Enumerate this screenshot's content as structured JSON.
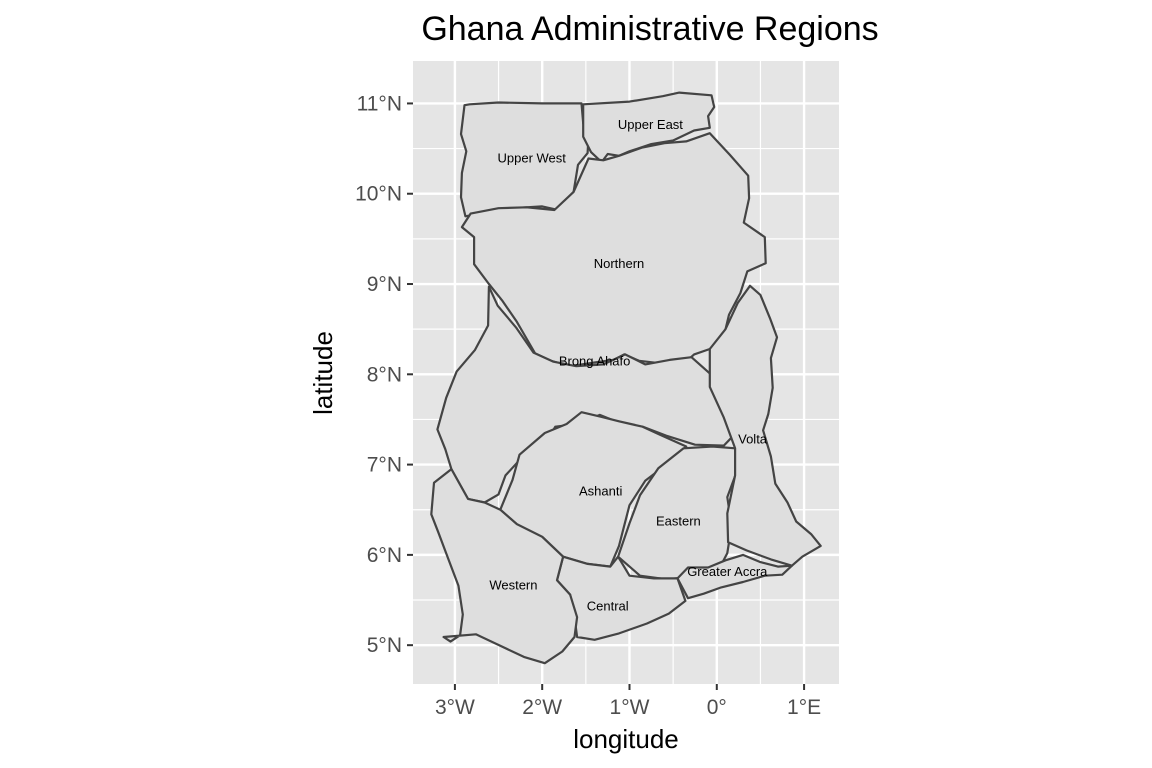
{
  "title": "Ghana Administrative Regions",
  "x_axis": {
    "label": "longitude",
    "ticks": [
      {
        "value": -3,
        "label": "3°W"
      },
      {
        "value": -2,
        "label": "2°W"
      },
      {
        "value": -1,
        "label": "1°W"
      },
      {
        "value": 0,
        "label": "0°"
      },
      {
        "value": 1,
        "label": "1°E"
      }
    ],
    "range": [
      -3.48,
      1.4
    ]
  },
  "y_axis": {
    "label": "latitude",
    "ticks": [
      {
        "value": 5,
        "label": "5°N"
      },
      {
        "value": 6,
        "label": "6°N"
      },
      {
        "value": 7,
        "label": "7°N"
      },
      {
        "value": 8,
        "label": "8°N"
      },
      {
        "value": 9,
        "label": "9°N"
      },
      {
        "value": 10,
        "label": "10°N"
      },
      {
        "value": 11,
        "label": "11°N"
      }
    ],
    "range": [
      4.57,
      11.47
    ]
  },
  "colors": {
    "panel_background": "#e5e5e5",
    "grid": "#ffffff",
    "region_fill": "#dedede",
    "region_border": "#444444"
  },
  "regions": [
    {
      "id": "upper-west",
      "label": "Upper West",
      "label_lon": -2.12,
      "label_lat": 10.39,
      "boundary": [
        [
          -2.83,
          10.99
        ],
        [
          -2.89,
          10.98
        ],
        [
          -2.93,
          10.66
        ],
        [
          -2.87,
          10.47
        ],
        [
          -2.92,
          10.23
        ],
        [
          -2.93,
          9.96
        ],
        [
          -2.88,
          9.75
        ],
        [
          -2.66,
          9.79
        ],
        [
          -2.48,
          9.83
        ],
        [
          -2.18,
          9.85
        ],
        [
          -2.0,
          9.86
        ],
        [
          -1.82,
          9.82
        ],
        [
          -1.64,
          10.02
        ],
        [
          -1.59,
          10.32
        ],
        [
          -1.48,
          10.45
        ],
        [
          -1.47,
          10.63
        ],
        [
          -1.53,
          10.78
        ],
        [
          -1.55,
          11.0
        ],
        [
          -2.0,
          11.0
        ],
        [
          -2.5,
          11.01
        ],
        [
          -2.83,
          10.99
        ]
      ]
    },
    {
      "id": "upper-east",
      "label": "Upper East",
      "label_lon": -0.76,
      "label_lat": 10.76,
      "boundary": [
        [
          -1.53,
          10.99
        ],
        [
          -1.0,
          11.02
        ],
        [
          -0.62,
          11.08
        ],
        [
          -0.43,
          11.12
        ],
        [
          -0.06,
          11.09
        ],
        [
          -0.03,
          10.96
        ],
        [
          -0.1,
          10.86
        ],
        [
          -0.08,
          10.73
        ],
        [
          -0.26,
          10.7
        ],
        [
          -0.5,
          10.59
        ],
        [
          -0.75,
          10.55
        ],
        [
          -1.0,
          10.47
        ],
        [
          -1.12,
          10.42
        ],
        [
          -1.25,
          10.44
        ],
        [
          -1.32,
          10.35
        ],
        [
          -1.44,
          10.46
        ],
        [
          -1.53,
          10.63
        ],
        [
          -1.53,
          10.99
        ]
      ]
    },
    {
      "id": "northern",
      "label": "Northern",
      "label_lon": -1.12,
      "label_lat": 9.22,
      "boundary": [
        [
          -1.64,
          10.02
        ],
        [
          -1.47,
          10.39
        ],
        [
          -1.3,
          10.37
        ],
        [
          -1.12,
          10.42
        ],
        [
          -0.86,
          10.51
        ],
        [
          -0.6,
          10.56
        ],
        [
          -0.35,
          10.58
        ],
        [
          -0.08,
          10.67
        ],
        [
          0.15,
          10.43
        ],
        [
          0.36,
          10.2
        ],
        [
          0.37,
          9.95
        ],
        [
          0.31,
          9.68
        ],
        [
          0.55,
          9.52
        ],
        [
          0.56,
          9.23
        ],
        [
          0.35,
          9.14
        ],
        [
          0.27,
          8.9
        ],
        [
          0.14,
          8.66
        ],
        [
          0.08,
          8.42
        ],
        [
          -0.08,
          8.28
        ],
        [
          -0.26,
          8.22
        ],
        [
          -0.42,
          8.08
        ],
        [
          -0.63,
          8.12
        ],
        [
          -0.89,
          8.15
        ],
        [
          -1.06,
          8.22
        ],
        [
          -1.18,
          8.16
        ],
        [
          -1.41,
          8.13
        ],
        [
          -1.68,
          8.09
        ],
        [
          -1.9,
          8.15
        ],
        [
          -2.08,
          8.23
        ],
        [
          -2.29,
          8.58
        ],
        [
          -2.46,
          8.82
        ],
        [
          -2.61,
          9.0
        ],
        [
          -2.78,
          9.22
        ],
        [
          -2.78,
          9.52
        ],
        [
          -2.92,
          9.63
        ],
        [
          -2.82,
          9.78
        ],
        [
          -2.5,
          9.84
        ],
        [
          -2.18,
          9.85
        ],
        [
          -1.86,
          9.82
        ],
        [
          -1.64,
          10.02
        ]
      ]
    },
    {
      "id": "brong-ahafo",
      "label": "Brong Ahafo",
      "label_lon": -1.4,
      "label_lat": 8.14,
      "boundary": [
        [
          -2.61,
          8.97
        ],
        [
          -2.51,
          8.76
        ],
        [
          -2.3,
          8.52
        ],
        [
          -2.1,
          8.24
        ],
        [
          -1.87,
          8.14
        ],
        [
          -1.61,
          8.09
        ],
        [
          -1.3,
          8.11
        ],
        [
          -1.05,
          8.22
        ],
        [
          -0.82,
          8.11
        ],
        [
          -0.54,
          8.16
        ],
        [
          -0.29,
          8.19
        ],
        [
          -0.08,
          8.01
        ],
        [
          0.05,
          7.66
        ],
        [
          0.2,
          7.33
        ],
        [
          0.08,
          7.21
        ],
        [
          -0.25,
          7.22
        ],
        [
          -0.58,
          7.32
        ],
        [
          -0.85,
          7.42
        ],
        [
          -1.03,
          7.43
        ],
        [
          -1.34,
          7.55
        ],
        [
          -1.59,
          7.45
        ],
        [
          -1.85,
          7.42
        ],
        [
          -1.93,
          7.29
        ],
        [
          -2.23,
          7.08
        ],
        [
          -2.42,
          6.88
        ],
        [
          -2.5,
          6.67
        ],
        [
          -2.66,
          6.58
        ],
        [
          -2.85,
          6.62
        ],
        [
          -3.04,
          6.95
        ],
        [
          -3.11,
          7.17
        ],
        [
          -3.2,
          7.39
        ],
        [
          -3.1,
          7.74
        ],
        [
          -2.98,
          8.03
        ],
        [
          -2.77,
          8.27
        ],
        [
          -2.62,
          8.54
        ],
        [
          -2.61,
          8.97
        ]
      ]
    },
    {
      "id": "ashanti",
      "label": "Ashanti",
      "label_lon": -1.33,
      "label_lat": 6.7,
      "boundary": [
        [
          -2.48,
          6.5
        ],
        [
          -2.34,
          6.83
        ],
        [
          -2.26,
          7.11
        ],
        [
          -1.97,
          7.35
        ],
        [
          -1.72,
          7.45
        ],
        [
          -1.55,
          7.58
        ],
        [
          -1.33,
          7.53
        ],
        [
          -1.12,
          7.48
        ],
        [
          -0.85,
          7.42
        ],
        [
          -0.65,
          7.33
        ],
        [
          -0.35,
          7.2
        ],
        [
          -0.55,
          7.02
        ],
        [
          -0.82,
          6.82
        ],
        [
          -1.0,
          6.55
        ],
        [
          -1.12,
          6.1
        ],
        [
          -1.22,
          5.87
        ],
        [
          -1.48,
          5.9
        ],
        [
          -1.76,
          5.98
        ],
        [
          -2.0,
          6.2
        ],
        [
          -2.29,
          6.34
        ],
        [
          -2.48,
          6.5
        ]
      ]
    },
    {
      "id": "eastern",
      "label": "Eastern",
      "label_lon": -0.44,
      "label_lat": 6.37,
      "boundary": [
        [
          -1.13,
          5.98
        ],
        [
          -1.0,
          6.35
        ],
        [
          -0.88,
          6.66
        ],
        [
          -0.67,
          6.96
        ],
        [
          -0.38,
          7.18
        ],
        [
          -0.05,
          7.2
        ],
        [
          0.21,
          7.18
        ],
        [
          0.22,
          6.9
        ],
        [
          0.12,
          6.64
        ],
        [
          0.17,
          6.32
        ],
        [
          0.12,
          6.02
        ],
        [
          0.03,
          5.85
        ],
        [
          -0.28,
          5.76
        ],
        [
          -0.57,
          5.73
        ],
        [
          -0.88,
          5.77
        ],
        [
          -1.13,
          5.98
        ]
      ]
    },
    {
      "id": "volta",
      "label": "Volta",
      "label_lon": 0.41,
      "label_lat": 7.28,
      "boundary": [
        [
          -0.08,
          8.28
        ],
        [
          0.1,
          8.5
        ],
        [
          0.24,
          8.79
        ],
        [
          0.38,
          8.98
        ],
        [
          0.5,
          8.88
        ],
        [
          0.61,
          8.62
        ],
        [
          0.69,
          8.41
        ],
        [
          0.62,
          8.18
        ],
        [
          0.64,
          7.85
        ],
        [
          0.59,
          7.56
        ],
        [
          0.53,
          7.38
        ],
        [
          0.62,
          7.09
        ],
        [
          0.67,
          6.79
        ],
        [
          0.81,
          6.58
        ],
        [
          0.91,
          6.37
        ],
        [
          1.08,
          6.23
        ],
        [
          1.19,
          6.1
        ],
        [
          0.98,
          5.98
        ],
        [
          0.86,
          5.88
        ],
        [
          0.62,
          5.95
        ],
        [
          0.34,
          6.05
        ],
        [
          0.13,
          6.14
        ],
        [
          0.12,
          6.46
        ],
        [
          0.21,
          6.88
        ],
        [
          0.21,
          7.18
        ],
        [
          0.08,
          7.52
        ],
        [
          -0.08,
          7.86
        ],
        [
          -0.08,
          8.28
        ]
      ]
    },
    {
      "id": "greater-accra",
      "label": "Greater Accra",
      "label_lon": 0.12,
      "label_lat": 5.81,
      "boundary": [
        [
          -0.45,
          5.74
        ],
        [
          -0.33,
          5.86
        ],
        [
          -0.1,
          5.86
        ],
        [
          0.1,
          5.94
        ],
        [
          0.3,
          6.0
        ],
        [
          0.5,
          5.92
        ],
        [
          0.7,
          5.87
        ],
        [
          0.86,
          5.88
        ],
        [
          0.75,
          5.78
        ],
        [
          0.55,
          5.77
        ],
        [
          0.3,
          5.7
        ],
        [
          0.05,
          5.64
        ],
        [
          -0.15,
          5.57
        ],
        [
          -0.33,
          5.52
        ],
        [
          -0.45,
          5.74
        ]
      ]
    },
    {
      "id": "central",
      "label": "Central",
      "label_lon": -1.25,
      "label_lat": 5.43,
      "boundary": [
        [
          -1.76,
          5.98
        ],
        [
          -1.83,
          5.72
        ],
        [
          -1.68,
          5.56
        ],
        [
          -1.63,
          5.31
        ],
        [
          -1.6,
          5.09
        ],
        [
          -1.4,
          5.06
        ],
        [
          -1.12,
          5.13
        ],
        [
          -0.8,
          5.24
        ],
        [
          -0.55,
          5.35
        ],
        [
          -0.36,
          5.49
        ],
        [
          -0.45,
          5.74
        ],
        [
          -0.72,
          5.74
        ],
        [
          -1.0,
          5.77
        ],
        [
          -1.13,
          5.98
        ],
        [
          -1.22,
          5.87
        ],
        [
          -1.48,
          5.9
        ],
        [
          -1.76,
          5.98
        ]
      ]
    },
    {
      "id": "western",
      "label": "Western",
      "label_lon": -2.33,
      "label_lat": 5.66,
      "boundary": [
        [
          -2.85,
          6.62
        ],
        [
          -3.04,
          6.95
        ],
        [
          -3.24,
          6.8
        ],
        [
          -3.27,
          6.45
        ],
        [
          -3.19,
          6.25
        ],
        [
          -3.07,
          5.94
        ],
        [
          -2.96,
          5.66
        ],
        [
          -2.91,
          5.34
        ],
        [
          -2.94,
          5.11
        ],
        [
          -3.05,
          5.04
        ],
        [
          -3.13,
          5.09
        ],
        [
          -2.76,
          5.12
        ],
        [
          -2.45,
          4.98
        ],
        [
          -2.21,
          4.87
        ],
        [
          -1.97,
          4.8
        ],
        [
          -1.77,
          4.93
        ],
        [
          -1.63,
          5.09
        ],
        [
          -1.6,
          5.31
        ],
        [
          -1.68,
          5.56
        ],
        [
          -1.83,
          5.72
        ],
        [
          -1.76,
          5.98
        ],
        [
          -2.0,
          6.2
        ],
        [
          -2.29,
          6.34
        ],
        [
          -2.48,
          6.5
        ],
        [
          -2.66,
          6.58
        ],
        [
          -2.85,
          6.62
        ]
      ]
    }
  ]
}
